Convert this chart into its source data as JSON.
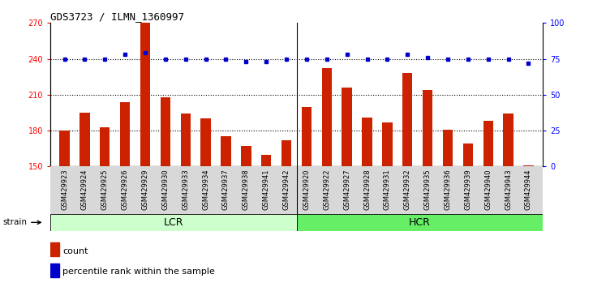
{
  "title": "GDS3723 / ILMN_1360997",
  "categories": [
    "GSM429923",
    "GSM429924",
    "GSM429925",
    "GSM429926",
    "GSM429929",
    "GSM429930",
    "GSM429933",
    "GSM429934",
    "GSM429937",
    "GSM429938",
    "GSM429941",
    "GSM429942",
    "GSM429920",
    "GSM429922",
    "GSM429927",
    "GSM429928",
    "GSM429931",
    "GSM429932",
    "GSM429935",
    "GSM429936",
    "GSM429939",
    "GSM429940",
    "GSM429943",
    "GSM429944"
  ],
  "bar_values": [
    180,
    195,
    183,
    204,
    270,
    208,
    194,
    190,
    175,
    167,
    160,
    172,
    200,
    232,
    216,
    191,
    187,
    228,
    214,
    181,
    169,
    188,
    194,
    151
  ],
  "blue_values": [
    75,
    75,
    75,
    78,
    79,
    75,
    75,
    75,
    75,
    73,
    73,
    75,
    75,
    75,
    78,
    75,
    75,
    78,
    76,
    75,
    75,
    75,
    75,
    72
  ],
  "lcr_count": 12,
  "hcr_count": 12,
  "bar_color": "#cc2200",
  "blue_color": "#0000cc",
  "ylim_left": [
    150,
    270
  ],
  "ylim_right": [
    0,
    100
  ],
  "yticks_left": [
    150,
    180,
    210,
    240,
    270
  ],
  "yticks_right": [
    0,
    25,
    50,
    75,
    100
  ],
  "grid_values": [
    180,
    210,
    240
  ],
  "lcr_color": "#ccffcc",
  "hcr_color": "#66ee66",
  "strain_label": "strain",
  "lcr_label": "LCR",
  "hcr_label": "HCR",
  "legend_count": "count",
  "legend_pct": "percentile rank within the sample"
}
